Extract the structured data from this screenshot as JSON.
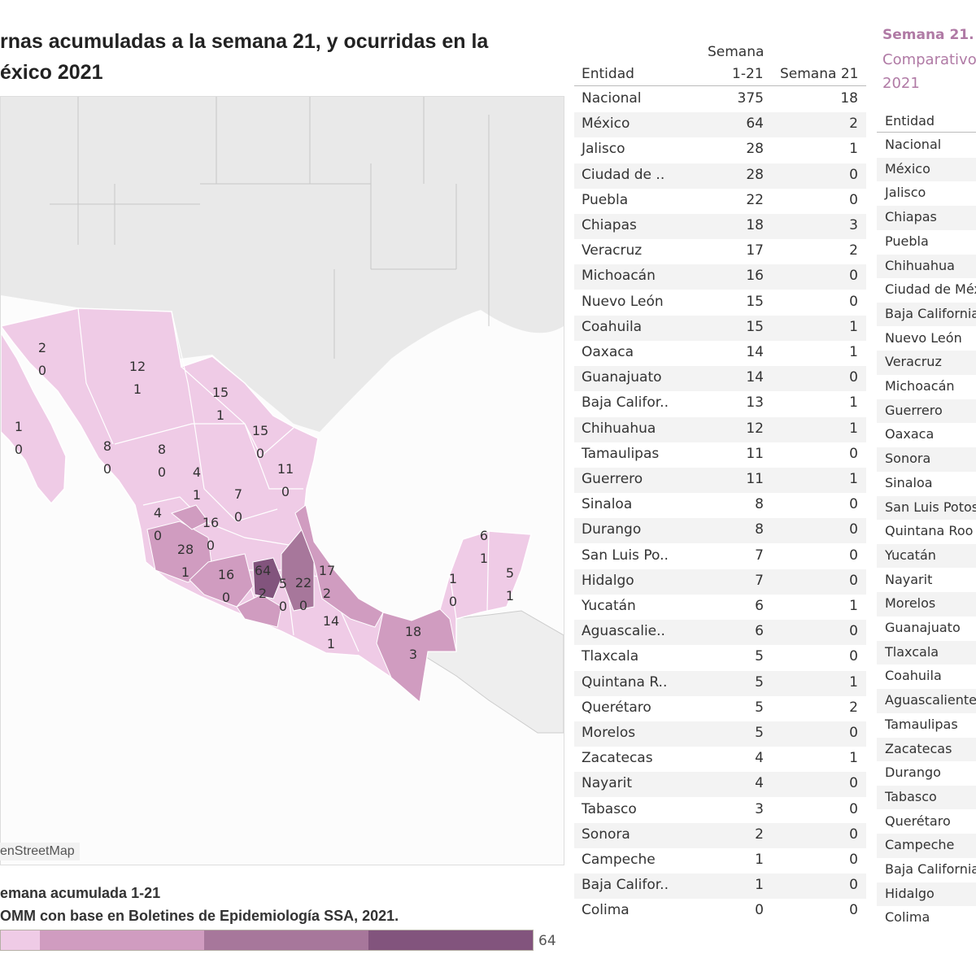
{
  "title": {
    "line1": "rnas acumuladas a la semana 21, y ocurridas en la",
    "line2": "éxico 2021"
  },
  "map": {
    "attribution": "enStreetMap",
    "labels": [
      [
        "2",
        "0"
      ],
      [
        "12",
        "1"
      ],
      [
        "15",
        "1"
      ],
      [
        "1",
        "0"
      ],
      [
        "15",
        "0"
      ],
      [
        "8",
        "0"
      ],
      [
        "8",
        "0"
      ],
      [
        "11",
        "0"
      ],
      [
        "4",
        "1"
      ],
      [
        "7",
        "0"
      ],
      [
        "4",
        "0"
      ],
      [
        "16",
        "0"
      ],
      [
        "28",
        "1"
      ],
      [
        "16",
        "0"
      ],
      [
        "64",
        "2"
      ],
      [
        "5",
        "0"
      ],
      [
        "22",
        "0"
      ],
      [
        "17",
        "2"
      ],
      [
        "14",
        "1"
      ],
      [
        "18",
        "3"
      ],
      [
        "1",
        "0"
      ],
      [
        "6",
        "1"
      ],
      [
        "5",
        "1"
      ]
    ]
  },
  "legend": {
    "line1": "emana acumulada 1-21",
    "line2": "OMM con base en Boletines de Epidemiología SSA, 2021.",
    "max": "64",
    "colors": [
      "#efcbe6",
      "#d09cc0",
      "#a7779b",
      "#82547d"
    ]
  },
  "table": {
    "header": {
      "entidad": "Entidad",
      "acum_top": "Semana",
      "acum": "1-21",
      "sem": "Semana 21"
    },
    "rows": [
      [
        "Nacional",
        "375",
        "18"
      ],
      [
        "México",
        "64",
        "2"
      ],
      [
        "Jalisco",
        "28",
        "1"
      ],
      [
        "Ciudad de ..",
        "28",
        "0"
      ],
      [
        "Puebla",
        "22",
        "0"
      ],
      [
        "Chiapas",
        "18",
        "3"
      ],
      [
        "Veracruz",
        "17",
        "2"
      ],
      [
        "Michoacán",
        "16",
        "0"
      ],
      [
        "Nuevo León",
        "15",
        "0"
      ],
      [
        "Coahuila",
        "15",
        "1"
      ],
      [
        "Oaxaca",
        "14",
        "1"
      ],
      [
        "Guanajuato",
        "14",
        "0"
      ],
      [
        "Baja Califor..",
        "13",
        "1"
      ],
      [
        "Chihuahua",
        "12",
        "1"
      ],
      [
        "Tamaulipas",
        "11",
        "0"
      ],
      [
        "Guerrero",
        "11",
        "1"
      ],
      [
        "Sinaloa",
        "8",
        "0"
      ],
      [
        "Durango",
        "8",
        "0"
      ],
      [
        "San Luis Po..",
        "7",
        "0"
      ],
      [
        "Hidalgo",
        "7",
        "0"
      ],
      [
        "Yucatán",
        "6",
        "1"
      ],
      [
        "Aguascalie..",
        "6",
        "0"
      ],
      [
        "Tlaxcala",
        "5",
        "0"
      ],
      [
        "Quintana R..",
        "5",
        "1"
      ],
      [
        "Querétaro",
        "5",
        "2"
      ],
      [
        "Morelos",
        "5",
        "0"
      ],
      [
        "Zacatecas",
        "4",
        "1"
      ],
      [
        "Nayarit",
        "4",
        "0"
      ],
      [
        "Tabasco",
        "3",
        "0"
      ],
      [
        "Sonora",
        "2",
        "0"
      ],
      [
        "Campeche",
        "1",
        "0"
      ],
      [
        "Baja Califor..",
        "1",
        "0"
      ],
      [
        "Colima",
        "0",
        "0"
      ]
    ]
  },
  "right": {
    "title1": "Semana 21.",
    "title2": "Comparativo",
    "title3": "2021",
    "header": "Entidad",
    "rows": [
      "Nacional",
      "México",
      "Jalisco",
      "Chiapas",
      "Puebla",
      "Chihuahua",
      "Ciudad de México",
      "Baja California",
      "Nuevo León",
      "Veracruz",
      "Michoacán",
      "Guerrero",
      "Oaxaca",
      "Sonora",
      "Sinaloa",
      "San Luis Potosí",
      "Quintana Roo",
      "Yucatán",
      "Nayarit",
      "Morelos",
      "Guanajuato",
      "Tlaxcala",
      "Coahuila",
      "Aguascalientes",
      "Tamaulipas",
      "Zacatecas",
      "Durango",
      "Tabasco",
      "Querétaro",
      "Campeche",
      "Baja California Sur",
      "Hidalgo",
      "Colima"
    ]
  }
}
